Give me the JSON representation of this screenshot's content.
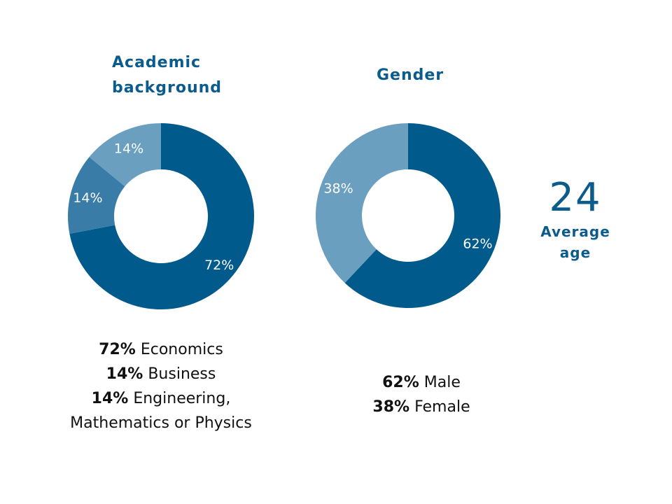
{
  "colors": {
    "dark": "#005a8c",
    "mid": "#3a7ca8",
    "light": "#6a9fc0"
  },
  "chart_data": [
    {
      "type": "pie",
      "subtype": "donut",
      "title": "Academic background",
      "slices": [
        {
          "label": "Economics",
          "value": 72,
          "display": "72%",
          "color": "#005a8c"
        },
        {
          "label": "Business",
          "value": 14,
          "display": "14%",
          "color": "#3a7ca8"
        },
        {
          "label": "Engineering, Mathematics or Physics",
          "value": 14,
          "display": "14%",
          "color": "#6a9fc0"
        }
      ]
    },
    {
      "type": "pie",
      "subtype": "donut",
      "title": "Gender",
      "slices": [
        {
          "label": "Male",
          "value": 62,
          "display": "62%",
          "color": "#005a8c"
        },
        {
          "label": "Female",
          "value": 38,
          "display": "38%",
          "color": "#6a9fc0"
        }
      ]
    }
  ],
  "titles": {
    "academic_1": "Academic",
    "academic_2": "background",
    "gender": "Gender"
  },
  "legend_academic": [
    {
      "pct": "72%",
      "label": "Economics"
    },
    {
      "pct": "14%",
      "label": "Business"
    },
    {
      "pct": "14%",
      "label": "Engineering,"
    }
  ],
  "legend_academic_extra": "Mathematics or Physics",
  "legend_gender": [
    {
      "pct": "62%",
      "label": "Male"
    },
    {
      "pct": "38%",
      "label": "Female"
    }
  ],
  "age": {
    "value": "24",
    "label_1": "Average",
    "label_2": "age"
  }
}
